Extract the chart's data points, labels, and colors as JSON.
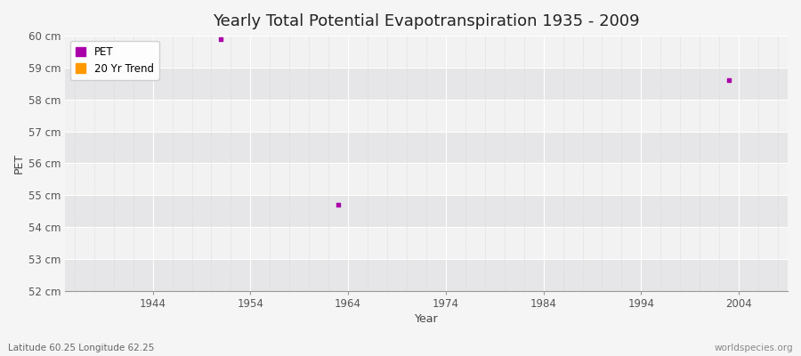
{
  "title": "Yearly Total Potential Evapotranspiration 1935 - 2009",
  "xlabel": "Year",
  "ylabel": "PET",
  "background_color": "#f5f5f5",
  "plot_bg_color": "#ebebeb",
  "band_color_light": "#f2f2f2",
  "band_color_dark": "#e6e6e8",
  "grid_color": "#ffffff",
  "grid_color_minor": "#d8d8dd",
  "data_points": [
    {
      "year": 1951,
      "value": 59.9
    },
    {
      "year": 1963,
      "value": 54.7
    },
    {
      "year": 2003,
      "value": 58.6
    }
  ],
  "pet_color": "#aa00aa",
  "trend_color": "#ff9900",
  "ylim": [
    52,
    60
  ],
  "yticks": [
    52,
    53,
    54,
    55,
    56,
    57,
    58,
    59,
    60
  ],
  "ytick_labels": [
    "52 cm",
    "53 cm",
    "54 cm",
    "55 cm",
    "56 cm",
    "57 cm",
    "58 cm",
    "59 cm",
    "60 cm"
  ],
  "xlim": [
    1935,
    2009
  ],
  "xticks": [
    1944,
    1954,
    1964,
    1974,
    1984,
    1994,
    2004
  ],
  "footer_left": "Latitude 60.25 Longitude 62.25",
  "footer_right": "worldspecies.org",
  "legend_labels": [
    "PET",
    "20 Yr Trend"
  ],
  "title_fontsize": 13,
  "axis_fontsize": 9,
  "tick_fontsize": 8.5,
  "footer_fontsize": 7.5
}
